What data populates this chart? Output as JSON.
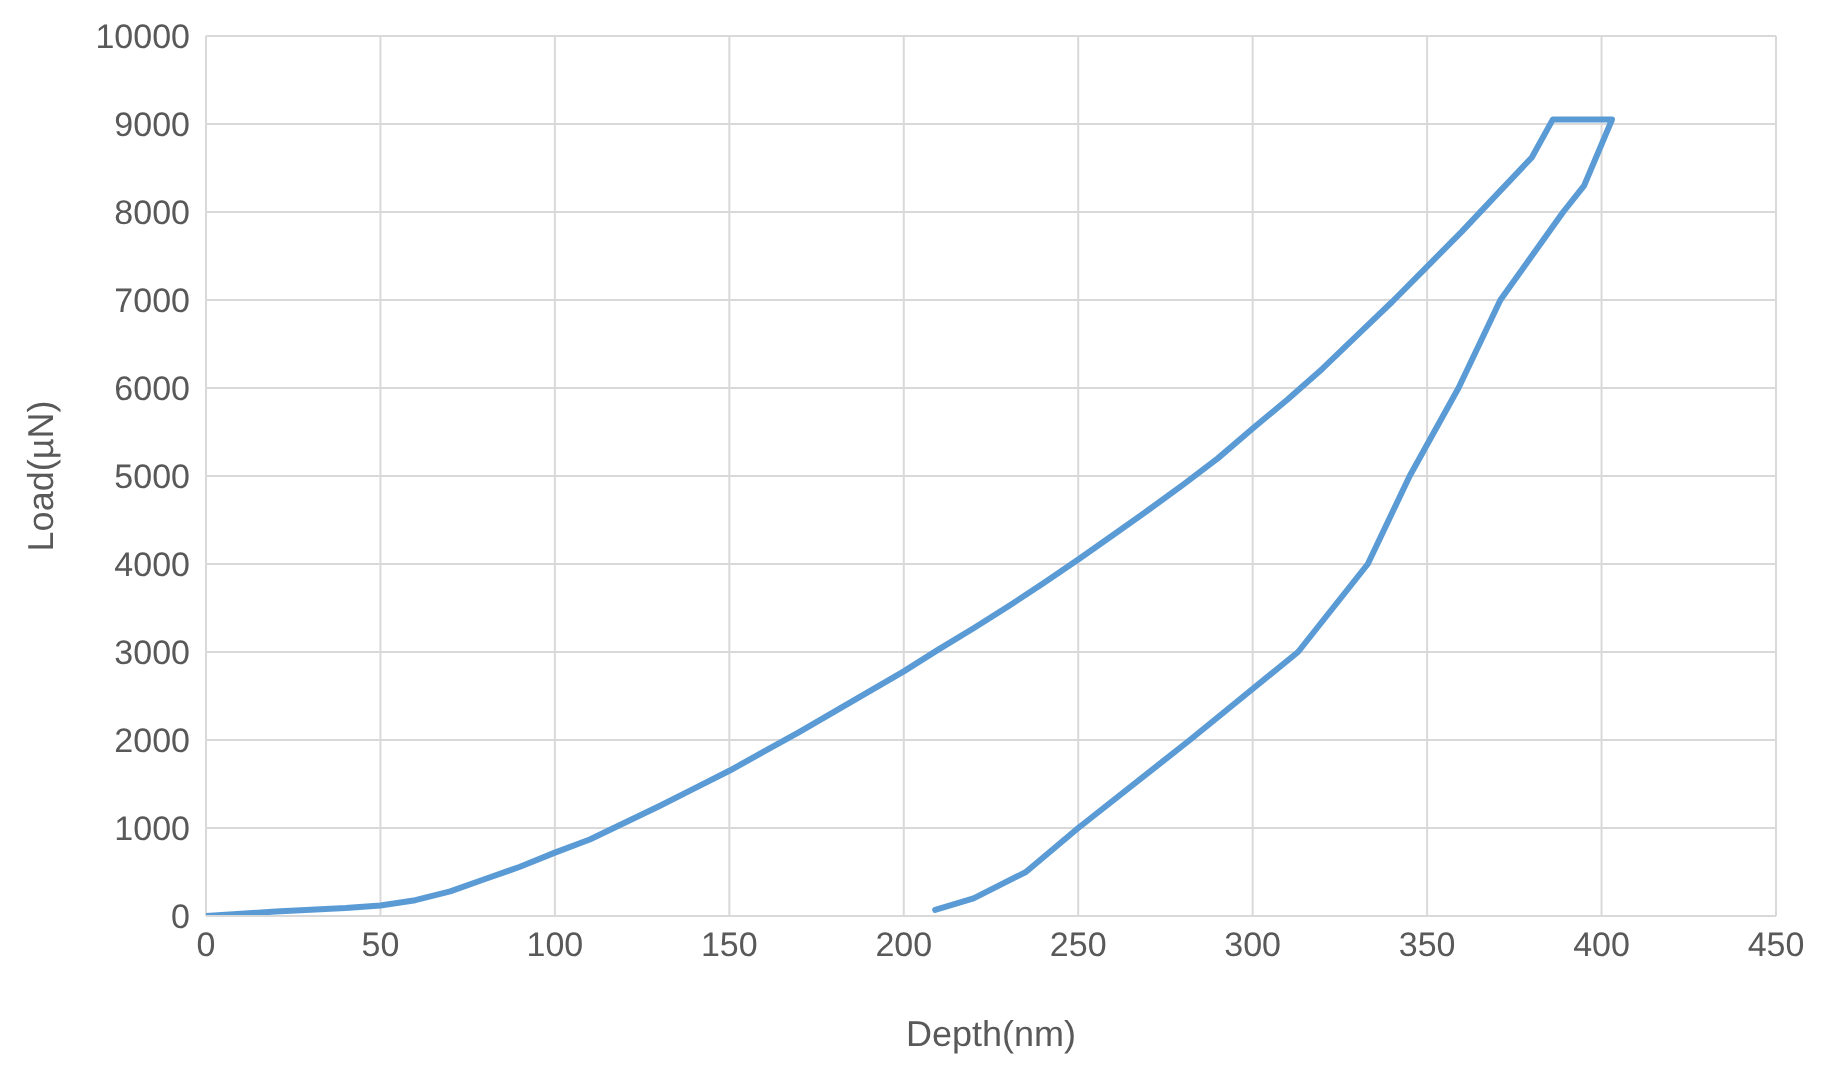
{
  "chart_data": {
    "type": "line",
    "xlabel": "Depth(nm)",
    "ylabel": "Load(µN)",
    "x": [
      0,
      20,
      40,
      50,
      60,
      70,
      80,
      90,
      100,
      110,
      120,
      130,
      140,
      150,
      160,
      170,
      180,
      190,
      200,
      210,
      220,
      230,
      240,
      250,
      260,
      270,
      280,
      290,
      300,
      310,
      320,
      330,
      340,
      350,
      360,
      370,
      380,
      386,
      403,
      395,
      389,
      371,
      359,
      345,
      333,
      313,
      282,
      250,
      235,
      220,
      209
    ],
    "series": [
      {
        "color": "#5b9bd5",
        "values": [
          0,
          50,
          90,
          120,
          180,
          280,
          420,
          560,
          720,
          870,
          1060,
          1250,
          1450,
          1650,
          1870,
          2090,
          2320,
          2550,
          2780,
          3030,
          3270,
          3520,
          3780,
          4050,
          4330,
          4610,
          4900,
          5200,
          5540,
          5870,
          6220,
          6600,
          6980,
          7380,
          7780,
          8200,
          8620,
          9050,
          9050,
          8300,
          8000,
          7000,
          6000,
          5000,
          4000,
          3000,
          2000,
          1000,
          500,
          200,
          70
        ]
      }
    ],
    "xlim": [
      0,
      450
    ],
    "xticks": [
      0,
      50,
      100,
      150,
      200,
      250,
      300,
      350,
      400,
      450
    ],
    "ylim": [
      0,
      10000
    ],
    "yticks": [
      0,
      1000,
      2000,
      3000,
      4000,
      5000,
      6000,
      7000,
      8000,
      9000,
      10000
    ],
    "grid": true,
    "marker": "none",
    "line_style": "solid"
  }
}
